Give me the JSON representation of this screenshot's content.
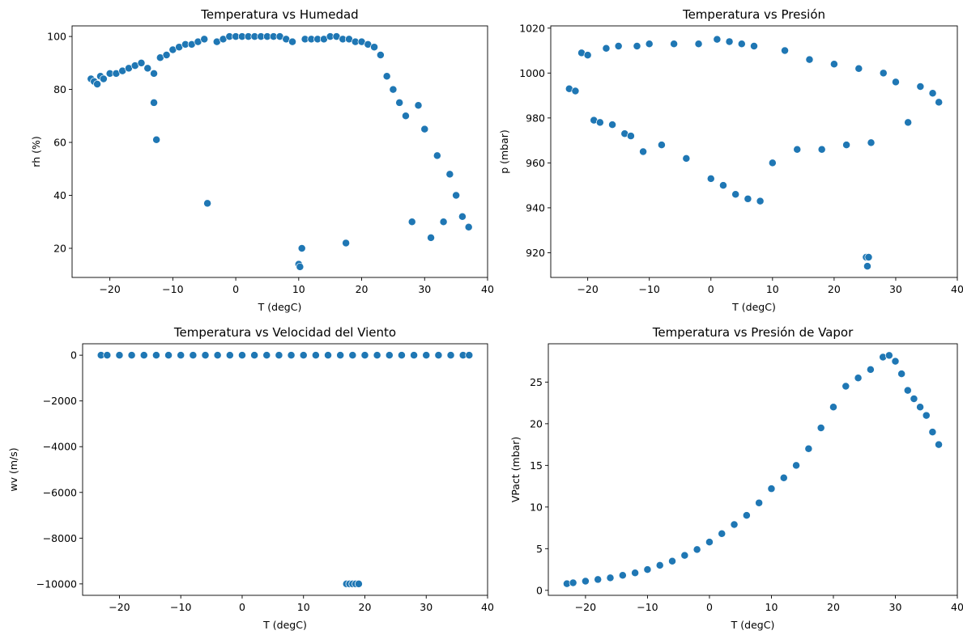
{
  "chart_data": [
    {
      "type": "scatter",
      "title": "Temperatura vs Humedad",
      "xlabel": "T (degC)",
      "ylabel": "rh (%)",
      "xlim": [
        -26,
        40
      ],
      "ylim": [
        9,
        104
      ],
      "xticks": [
        -20,
        -10,
        0,
        10,
        20,
        30,
        40
      ],
      "yticks": [
        20,
        40,
        60,
        80,
        100
      ],
      "xtick_labels": [
        "−20",
        "−10",
        "0",
        "10",
        "20",
        "30",
        "40"
      ],
      "ytick_labels": [
        "20",
        "40",
        "60",
        "80",
        "100"
      ],
      "color": "#1f77b4",
      "outline": "[#ffffff]",
      "grid": false,
      "series": [
        {
          "x": [
            -23.0,
            -22.5,
            -22,
            -21.5,
            -21,
            -20,
            -19,
            -18,
            -17,
            -16,
            -15,
            -14,
            -13,
            -12.6,
            -13,
            -12,
            -11,
            -10,
            -9,
            -8,
            -7,
            -6,
            -5,
            -4.5,
            -3,
            -2,
            -1,
            0,
            1,
            2,
            3,
            4,
            5,
            6,
            7,
            8,
            9,
            10,
            10.2,
            10.5,
            11,
            12,
            13,
            14,
            15,
            16,
            17,
            17.5,
            18,
            19,
            20,
            21,
            22,
            23,
            24,
            25,
            26,
            27,
            28,
            29,
            30,
            31,
            32,
            33,
            34,
            35,
            36,
            37
          ],
          "y": [
            84,
            83,
            82,
            85,
            84,
            86,
            86,
            87,
            88,
            89,
            90,
            88,
            86,
            61,
            75,
            92,
            93,
            95,
            96,
            97,
            97,
            98,
            99,
            37,
            98,
            99,
            100,
            100,
            100,
            100,
            100,
            100,
            100,
            100,
            100,
            99,
            98,
            14,
            13,
            20,
            99,
            99,
            99,
            99,
            100,
            100,
            99,
            22,
            99,
            98,
            98,
            97,
            96,
            93,
            85,
            80,
            75,
            70,
            30,
            74,
            65,
            24,
            55,
            30,
            48,
            40,
            32,
            28
          ]
        }
      ]
    },
    {
      "type": "scatter",
      "title": "Temperatura vs Presión",
      "xlabel": "T (degC)",
      "ylabel": "p (mbar)",
      "xlim": [
        -26,
        40
      ],
      "ylim": [
        909,
        1021
      ],
      "xticks": [
        -20,
        -10,
        0,
        10,
        20,
        30,
        40
      ],
      "yticks": [
        920,
        940,
        960,
        980,
        1000,
        1020
      ],
      "xtick_labels": [
        "−20",
        "−10",
        "0",
        "10",
        "20",
        "30",
        "40"
      ],
      "ytick_labels": [
        "920",
        "940",
        "960",
        "980",
        "1000",
        "1020"
      ],
      "color": "#1f77b4",
      "grid": false,
      "series": [
        {
          "x": [
            -23,
            -22,
            -21,
            -20,
            -19,
            -18,
            -17,
            -16,
            -15,
            -14,
            -13,
            -12,
            -11,
            -10,
            -8,
            -6,
            -4,
            -2,
            0,
            1,
            2,
            3,
            4,
            5,
            6,
            7,
            8,
            10,
            12,
            14,
            16,
            18,
            20,
            22,
            24,
            25.2,
            25.4,
            25.6,
            26,
            28,
            30,
            32,
            34,
            36,
            37
          ],
          "y": [
            993,
            992,
            1009,
            1008,
            979,
            978,
            1011,
            977,
            1012,
            973,
            972,
            1012,
            965,
            1013,
            968,
            1013,
            962,
            1013,
            953,
            1015,
            950,
            1014,
            946,
            1013,
            944,
            1012,
            943,
            960,
            1010,
            966,
            1006,
            966,
            1004,
            968,
            1002,
            918,
            914,
            918,
            969,
            1000,
            996,
            978,
            994,
            991,
            987
          ]
        }
      ]
    },
    {
      "type": "scatter",
      "title": "Temperatura vs Velocidad del Viento",
      "xlabel": "T (degC)",
      "ylabel": "wv (m/s)",
      "xlim": [
        -26,
        40
      ],
      "ylim": [
        -10500,
        500
      ],
      "xticks": [
        -20,
        -10,
        0,
        10,
        20,
        30,
        40
      ],
      "yticks": [
        -10000,
        -8000,
        -6000,
        -4000,
        -2000,
        0
      ],
      "xtick_labels": [
        "−20",
        "−10",
        "0",
        "10",
        "20",
        "30",
        "40"
      ],
      "ytick_labels": [
        "−10000",
        "−8000",
        "−6000",
        "−4000",
        "−2000",
        "0"
      ],
      "color": "#1f77b4",
      "grid": false,
      "series": [
        {
          "x": [
            -23,
            -22,
            -20,
            -18,
            -16,
            -14,
            -12,
            -10,
            -8,
            -6,
            -4,
            -2,
            0,
            2,
            4,
            6,
            8,
            10,
            12,
            14,
            16,
            18,
            20,
            22,
            24,
            26,
            28,
            30,
            32,
            34,
            36,
            37,
            17,
            17.5,
            18,
            18.5,
            19
          ],
          "y": [
            0,
            0,
            0,
            0,
            0,
            0,
            0,
            0,
            0,
            0,
            0,
            0,
            0,
            0,
            0,
            0,
            0,
            0,
            0,
            0,
            0,
            0,
            0,
            0,
            0,
            0,
            0,
            0,
            0,
            0,
            0,
            0,
            -10000,
            -10000,
            -10000,
            -10000,
            -10000
          ]
        }
      ]
    },
    {
      "type": "scatter",
      "title": "Temperatura vs Presión de Vapor",
      "xlabel": "T (degC)",
      "ylabel": "VPact (mbar)",
      "xlim": [
        -26,
        40
      ],
      "ylim": [
        -0.6,
        29.6
      ],
      "xticks": [
        -20,
        -10,
        0,
        10,
        20,
        30,
        40
      ],
      "yticks": [
        0,
        5,
        10,
        15,
        20,
        25
      ],
      "xtick_labels": [
        "−20",
        "−10",
        "0",
        "10",
        "20",
        "30",
        "40"
      ],
      "ytick_labels": [
        "0",
        "5",
        "10",
        "15",
        "20",
        "25"
      ],
      "color": "#1f77b4",
      "grid": false,
      "series": [
        {
          "x": [
            -23,
            -22,
            -20,
            -18,
            -16,
            -14,
            -12,
            -10,
            -8,
            -6,
            -4,
            -2,
            0,
            2,
            4,
            6,
            8,
            10,
            12,
            14,
            16,
            18,
            20,
            22,
            24,
            26,
            28,
            29,
            30,
            31,
            32,
            33,
            34,
            35,
            36,
            37
          ],
          "y": [
            0.8,
            0.9,
            1.1,
            1.3,
            1.5,
            1.8,
            2.1,
            2.5,
            3.0,
            3.5,
            4.2,
            4.9,
            5.8,
            6.8,
            7.9,
            9.0,
            10.5,
            12.2,
            13.5,
            15.0,
            17.0,
            19.5,
            22.0,
            24.5,
            25.5,
            26.5,
            28.0,
            28.2,
            27.5,
            26.0,
            24.0,
            23.0,
            22.0,
            21.0,
            19.0,
            17.5
          ]
        }
      ]
    }
  ]
}
